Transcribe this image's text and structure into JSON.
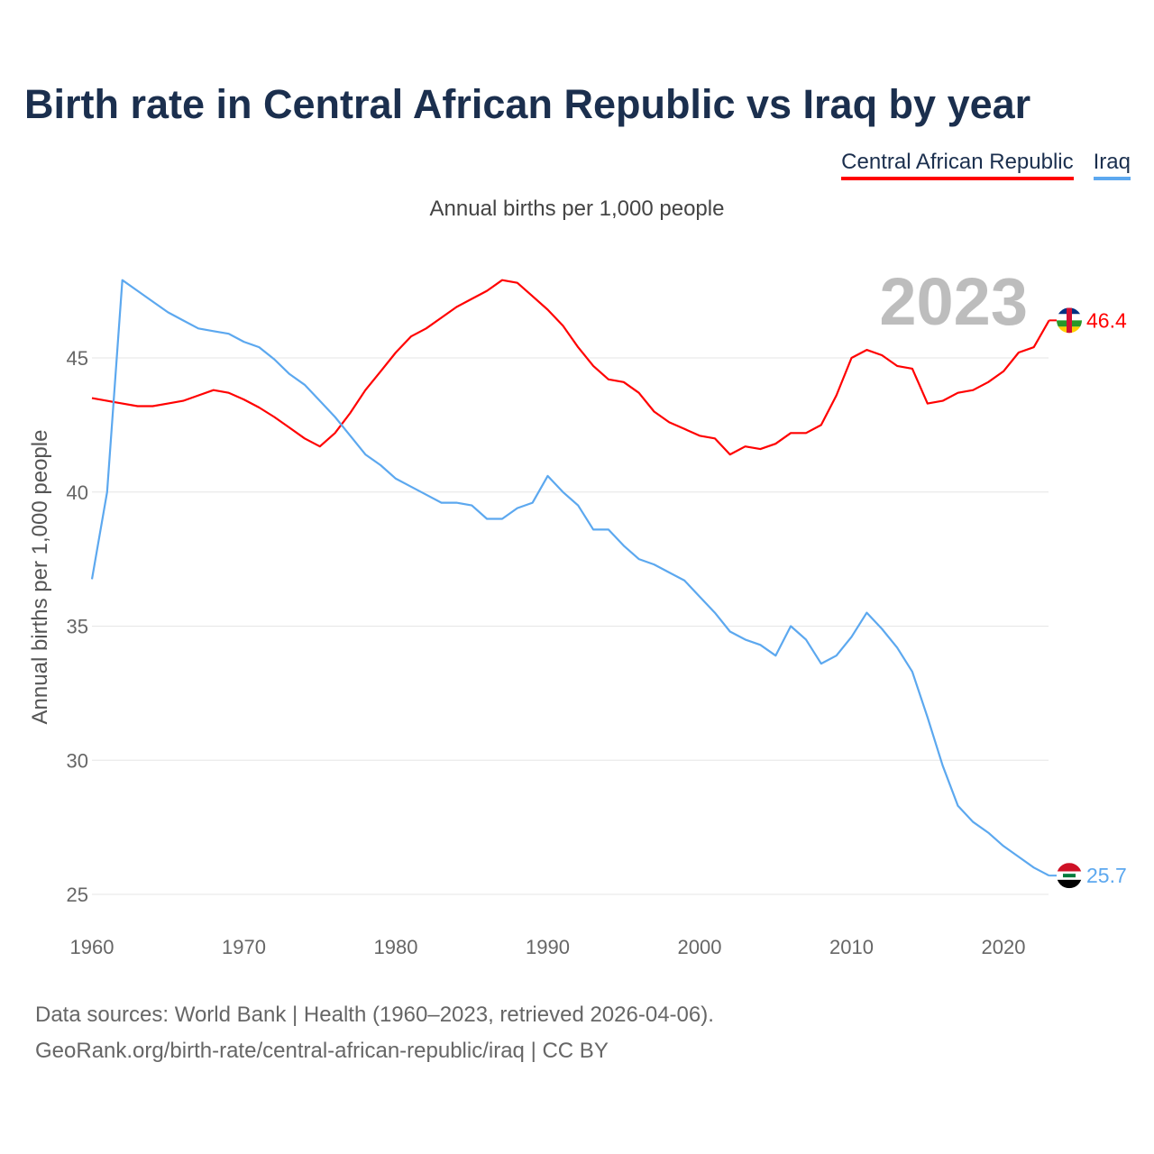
{
  "title": "Birth rate in Central African Republic vs Iraq by year",
  "subtitle": "Annual births per 1,000 people",
  "footer": {
    "line1": "Data sources: World Bank | Health (1960–2023, retrieved 2026-04-06).",
    "line2": "GeoRank.org/birth-rate/central-african-republic/iraq | CC BY"
  },
  "chart_data": {
    "type": "line",
    "title": "Birth rate in Central African Republic vs Iraq by year",
    "ylabel": "Annual births per 1,000 people",
    "xlabel": "",
    "year_label": "2023",
    "xlim": [
      1960,
      2023
    ],
    "ylim": [
      24.5,
      48.5
    ],
    "xticks": [
      "1960",
      "1970",
      "1980",
      "1990",
      "2000",
      "2010",
      "2020"
    ],
    "yticks": [
      "25",
      "30",
      "35",
      "40",
      "45"
    ],
    "grid": true,
    "legend_position": "top-right",
    "x": [
      1960,
      1961,
      1962,
      1963,
      1964,
      1965,
      1966,
      1967,
      1968,
      1969,
      1970,
      1971,
      1972,
      1973,
      1974,
      1975,
      1976,
      1977,
      1978,
      1979,
      1980,
      1981,
      1982,
      1983,
      1984,
      1985,
      1986,
      1987,
      1988,
      1989,
      1990,
      1991,
      1992,
      1993,
      1994,
      1995,
      1996,
      1997,
      1998,
      1999,
      2000,
      2001,
      2002,
      2003,
      2004,
      2005,
      2006,
      2007,
      2008,
      2009,
      2010,
      2011,
      2012,
      2013,
      2014,
      2015,
      2016,
      2017,
      2018,
      2019,
      2020,
      2021,
      2022,
      2023
    ],
    "series": [
      {
        "name": "Central African Republic",
        "color": "#ff0000",
        "end_label": "46.4",
        "flag": "central-african-republic-flag",
        "values": [
          43.5,
          43.4,
          43.3,
          43.2,
          43.2,
          43.3,
          43.4,
          43.6,
          43.8,
          43.7,
          43.45,
          43.15,
          42.8,
          42.4,
          42.0,
          41.7,
          42.2,
          42.95,
          43.8,
          44.5,
          45.2,
          45.8,
          46.1,
          46.5,
          46.9,
          47.2,
          47.5,
          47.9,
          47.8,
          47.3,
          46.8,
          46.2,
          45.4,
          44.7,
          44.2,
          44.1,
          43.7,
          43.0,
          42.6,
          42.35,
          42.1,
          42.0,
          41.4,
          41.7,
          41.6,
          41.8,
          42.2,
          42.2,
          42.5,
          43.6,
          45.0,
          45.3,
          45.1,
          44.7,
          44.6,
          43.3,
          43.4,
          43.7,
          43.8,
          44.1,
          44.5,
          45.2,
          45.4,
          46.4
        ]
      },
      {
        "name": "Iraq",
        "color": "#5ca8ef",
        "end_label": "25.7",
        "flag": "iraq-flag",
        "values": [
          36.75,
          40.0,
          47.9,
          47.5,
          47.1,
          46.7,
          46.4,
          46.1,
          46.0,
          45.9,
          45.6,
          45.4,
          44.95,
          44.4,
          44.0,
          43.4,
          42.8,
          42.1,
          41.4,
          41.0,
          40.5,
          40.2,
          39.9,
          39.6,
          39.6,
          39.5,
          39.0,
          39.0,
          39.4,
          39.6,
          40.6,
          40.0,
          39.5,
          38.6,
          38.6,
          38.0,
          37.5,
          37.3,
          37.0,
          36.7,
          36.1,
          35.5,
          34.8,
          34.5,
          34.3,
          33.9,
          35.0,
          34.5,
          33.6,
          33.9,
          34.6,
          35.5,
          34.9,
          34.2,
          33.3,
          31.6,
          29.8,
          28.3,
          27.7,
          27.3,
          26.8,
          26.4,
          26.0,
          25.7
        ]
      }
    ]
  }
}
